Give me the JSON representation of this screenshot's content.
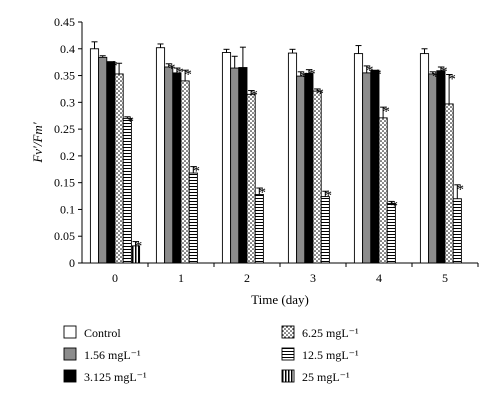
{
  "chart_data": {
    "type": "bar",
    "ylabel": "Fv′/Fm′",
    "xlabel": "Time (day)",
    "ylim": [
      0,
      0.45
    ],
    "yticks": [
      "0",
      "0.05",
      "0.1",
      "0.15",
      "0.2",
      "0.25",
      "0.3",
      "0.35",
      "0.4",
      "0.45"
    ],
    "categories": [
      "0",
      "1",
      "2",
      "3",
      "4",
      "5"
    ],
    "grid": false,
    "legend_position": "bottom",
    "significance_marker": "*",
    "series": [
      {
        "name": "Control",
        "pattern": "white",
        "values": [
          0.4,
          0.402,
          0.393,
          0.392,
          0.391,
          0.391
        ],
        "errors": [
          0.013,
          0.007,
          0.006,
          0.007,
          0.015,
          0.009
        ],
        "significant": [
          false,
          false,
          false,
          false,
          false,
          false
        ]
      },
      {
        "name": "1.56 mgL⁻¹",
        "pattern": "gray",
        "values": [
          0.384,
          0.366,
          0.364,
          0.349,
          0.355,
          0.353
        ],
        "errors": [
          0.003,
          0.006,
          0.022,
          0.008,
          0.013,
          0.004
        ],
        "significant": [
          false,
          true,
          false,
          true,
          true,
          true
        ]
      },
      {
        "name": "3.125 mgL⁻¹",
        "pattern": "black",
        "values": [
          0.376,
          0.355,
          0.365,
          0.354,
          0.36,
          0.359
        ],
        "errors": [
          0.0,
          0.009,
          0.038,
          0.007,
          0.0,
          0.007
        ],
        "significant": [
          true,
          true,
          false,
          true,
          true,
          true
        ]
      },
      {
        "name": "6.25 mgL⁻¹",
        "pattern": "dots",
        "values": [
          0.353,
          0.34,
          0.315,
          0.321,
          0.271,
          0.297
        ],
        "errors": [
          0.02,
          0.02,
          0.007,
          0.004,
          0.02,
          0.055
        ],
        "significant": [
          false,
          true,
          true,
          true,
          true,
          true
        ]
      },
      {
        "name": "12.5 mgL⁻¹",
        "pattern": "hlines",
        "values": [
          0.27,
          0.168,
          0.128,
          0.124,
          0.111,
          0.12
        ],
        "errors": [
          0.003,
          0.012,
          0.012,
          0.01,
          0.004,
          0.026
        ],
        "significant": [
          true,
          true,
          true,
          true,
          true,
          true
        ]
      },
      {
        "name": "25 mgL⁻¹",
        "pattern": "vlines",
        "values": [
          0.032,
          null,
          null,
          null,
          null,
          null
        ],
        "errors": [
          0.008,
          null,
          null,
          null,
          null,
          null
        ],
        "significant": [
          true,
          false,
          false,
          false,
          false,
          false
        ]
      }
    ],
    "colors": {
      "gray": "#8c8c8c",
      "black": "#000000",
      "white": "#ffffff",
      "stroke": "#000000"
    }
  }
}
